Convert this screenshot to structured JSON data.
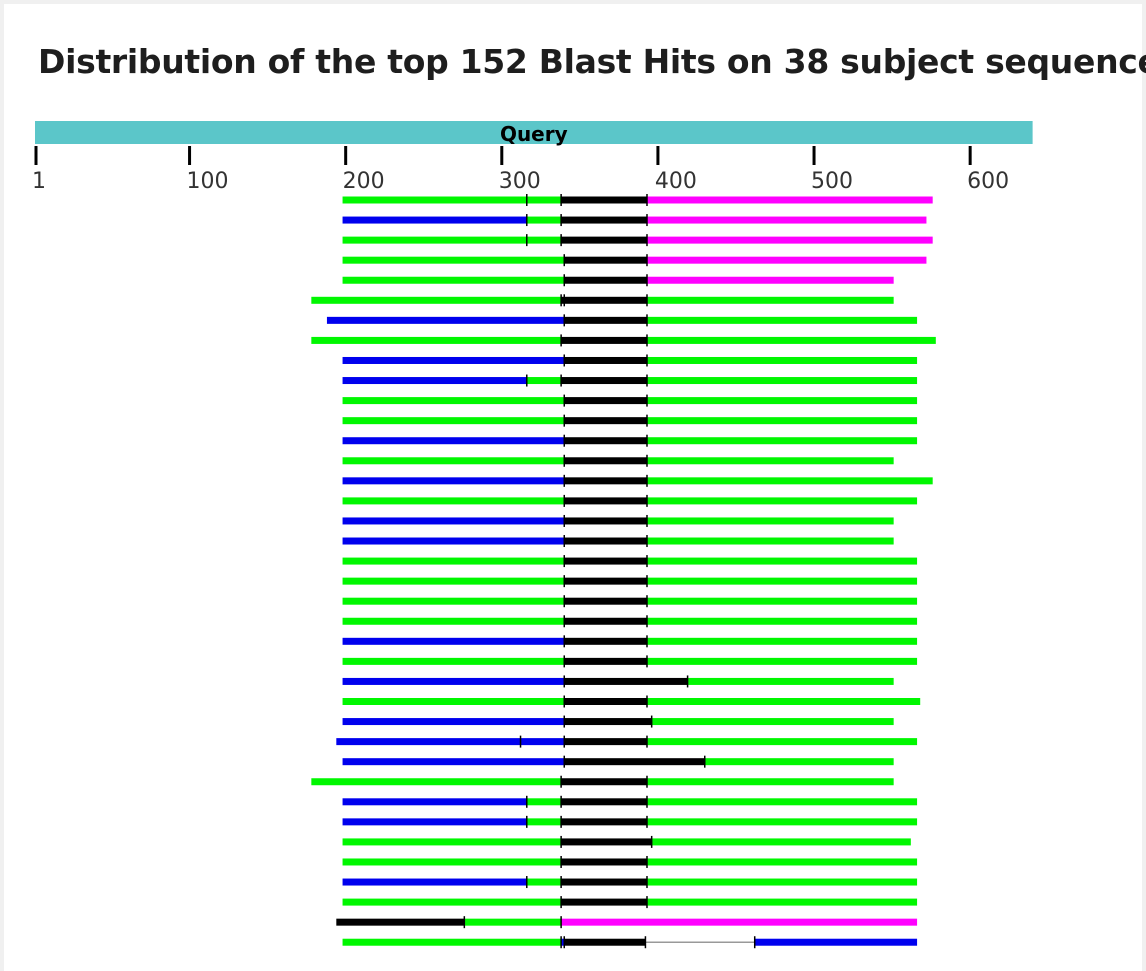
{
  "title": "Distribution of the top 152 Blast Hits on 38 subject sequences",
  "chart_data": {
    "type": "bar",
    "query": {
      "label": "Query",
      "start": 1,
      "end": 640,
      "color": "#5bc6c9"
    },
    "axis_ticks": [
      1,
      100,
      200,
      300,
      400,
      500,
      600
    ],
    "legend": "none",
    "colors": {
      "g": "#00f700",
      "b": "#0000ee",
      "k": "#000000",
      "m": "#ff00ff",
      "line": "#999999"
    },
    "rows": [
      [
        [
          198,
          316,
          "g"
        ],
        [
          316,
          338,
          "g"
        ],
        [
          338,
          393,
          "k"
        ],
        [
          393,
          576,
          "m"
        ]
      ],
      [
        [
          198,
          316,
          "b"
        ],
        [
          316,
          338,
          "g"
        ],
        [
          338,
          393,
          "k"
        ],
        [
          393,
          572,
          "m"
        ]
      ],
      [
        [
          198,
          316,
          "g"
        ],
        [
          316,
          338,
          "g"
        ],
        [
          338,
          393,
          "k"
        ],
        [
          393,
          576,
          "m"
        ]
      ],
      [
        [
          198,
          340,
          "g"
        ],
        [
          340,
          393,
          "k"
        ],
        [
          393,
          572,
          "m"
        ]
      ],
      [
        [
          198,
          340,
          "g"
        ],
        [
          340,
          393,
          "k"
        ],
        [
          393,
          551,
          "m"
        ]
      ],
      [
        [
          178,
          338,
          "g"
        ],
        [
          338,
          340,
          "k"
        ],
        [
          340,
          393,
          "k"
        ],
        [
          393,
          551,
          "g"
        ]
      ],
      [
        [
          188,
          340,
          "b"
        ],
        [
          340,
          393,
          "k"
        ],
        [
          393,
          566,
          "g"
        ]
      ],
      [
        [
          178,
          338,
          "g"
        ],
        [
          338,
          393,
          "k"
        ],
        [
          393,
          578,
          "g"
        ]
      ],
      [
        [
          198,
          340,
          "b"
        ],
        [
          340,
          393,
          "k"
        ],
        [
          393,
          566,
          "g"
        ]
      ],
      [
        [
          198,
          316,
          "b"
        ],
        [
          316,
          338,
          "g"
        ],
        [
          338,
          393,
          "k"
        ],
        [
          393,
          566,
          "g"
        ]
      ],
      [
        [
          198,
          340,
          "g"
        ],
        [
          340,
          393,
          "k"
        ],
        [
          393,
          566,
          "g"
        ]
      ],
      [
        [
          198,
          340,
          "g"
        ],
        [
          340,
          393,
          "k"
        ],
        [
          393,
          566,
          "g"
        ]
      ],
      [
        [
          198,
          340,
          "b"
        ],
        [
          340,
          393,
          "k"
        ],
        [
          393,
          566,
          "g"
        ]
      ],
      [
        [
          198,
          340,
          "g"
        ],
        [
          340,
          393,
          "k"
        ],
        [
          393,
          551,
          "g"
        ]
      ],
      [
        [
          198,
          340,
          "b"
        ],
        [
          340,
          393,
          "k"
        ],
        [
          393,
          576,
          "g"
        ]
      ],
      [
        [
          198,
          340,
          "g"
        ],
        [
          340,
          393,
          "k"
        ],
        [
          393,
          566,
          "g"
        ]
      ],
      [
        [
          198,
          340,
          "b"
        ],
        [
          340,
          393,
          "k"
        ],
        [
          393,
          551,
          "g"
        ]
      ],
      [
        [
          198,
          340,
          "b"
        ],
        [
          340,
          393,
          "k"
        ],
        [
          393,
          551,
          "g"
        ]
      ],
      [
        [
          198,
          340,
          "g"
        ],
        [
          340,
          393,
          "k"
        ],
        [
          393,
          566,
          "g"
        ]
      ],
      [
        [
          198,
          340,
          "g"
        ],
        [
          340,
          393,
          "k"
        ],
        [
          393,
          566,
          "g"
        ]
      ],
      [
        [
          198,
          340,
          "g"
        ],
        [
          340,
          393,
          "k"
        ],
        [
          393,
          566,
          "g"
        ]
      ],
      [
        [
          198,
          340,
          "g"
        ],
        [
          340,
          393,
          "k"
        ],
        [
          393,
          566,
          "g"
        ]
      ],
      [
        [
          198,
          340,
          "b"
        ],
        [
          340,
          393,
          "k"
        ],
        [
          393,
          566,
          "g"
        ]
      ],
      [
        [
          198,
          340,
          "g"
        ],
        [
          340,
          393,
          "k"
        ],
        [
          393,
          566,
          "g"
        ]
      ],
      [
        [
          198,
          340,
          "b"
        ],
        [
          340,
          419,
          "k"
        ],
        [
          419,
          551,
          "g"
        ]
      ],
      [
        [
          198,
          340,
          "g"
        ],
        [
          340,
          393,
          "k"
        ],
        [
          393,
          568,
          "g"
        ]
      ],
      [
        [
          198,
          340,
          "b"
        ],
        [
          340,
          396,
          "k"
        ],
        [
          396,
          551,
          "g"
        ]
      ],
      [
        [
          194,
          312,
          "b"
        ],
        [
          312,
          340,
          "b"
        ],
        [
          340,
          393,
          "k"
        ],
        [
          393,
          566,
          "g"
        ]
      ],
      [
        [
          198,
          340,
          "b"
        ],
        [
          340,
          430,
          "k"
        ],
        [
          430,
          551,
          "g"
        ]
      ],
      [
        [
          178,
          338,
          "g"
        ],
        [
          338,
          393,
          "k"
        ],
        [
          393,
          551,
          "g"
        ]
      ],
      [
        [
          198,
          316,
          "b"
        ],
        [
          316,
          338,
          "g"
        ],
        [
          338,
          393,
          "k"
        ],
        [
          393,
          566,
          "g"
        ]
      ],
      [
        [
          198,
          316,
          "b"
        ],
        [
          316,
          338,
          "g"
        ],
        [
          338,
          393,
          "k"
        ],
        [
          393,
          566,
          "g"
        ]
      ],
      [
        [
          198,
          338,
          "g"
        ],
        [
          338,
          396,
          "k"
        ],
        [
          396,
          562,
          "g"
        ]
      ],
      [
        [
          198,
          338,
          "g"
        ],
        [
          338,
          393,
          "k"
        ],
        [
          393,
          566,
          "g"
        ]
      ],
      [
        [
          198,
          316,
          "b"
        ],
        [
          316,
          338,
          "g"
        ],
        [
          338,
          393,
          "k"
        ],
        [
          393,
          566,
          "g"
        ]
      ],
      [
        [
          198,
          338,
          "g"
        ],
        [
          338,
          393,
          "k"
        ],
        [
          393,
          566,
          "g"
        ]
      ],
      [
        [
          194,
          276,
          "k"
        ],
        [
          276,
          338,
          "g"
        ],
        [
          338,
          566,
          "m"
        ]
      ],
      [
        [
          198,
          338,
          "g"
        ],
        [
          338,
          340,
          "b"
        ],
        [
          340,
          392,
          "k"
        ],
        [
          392,
          462,
          "line"
        ],
        [
          462,
          566,
          "b"
        ]
      ]
    ]
  }
}
